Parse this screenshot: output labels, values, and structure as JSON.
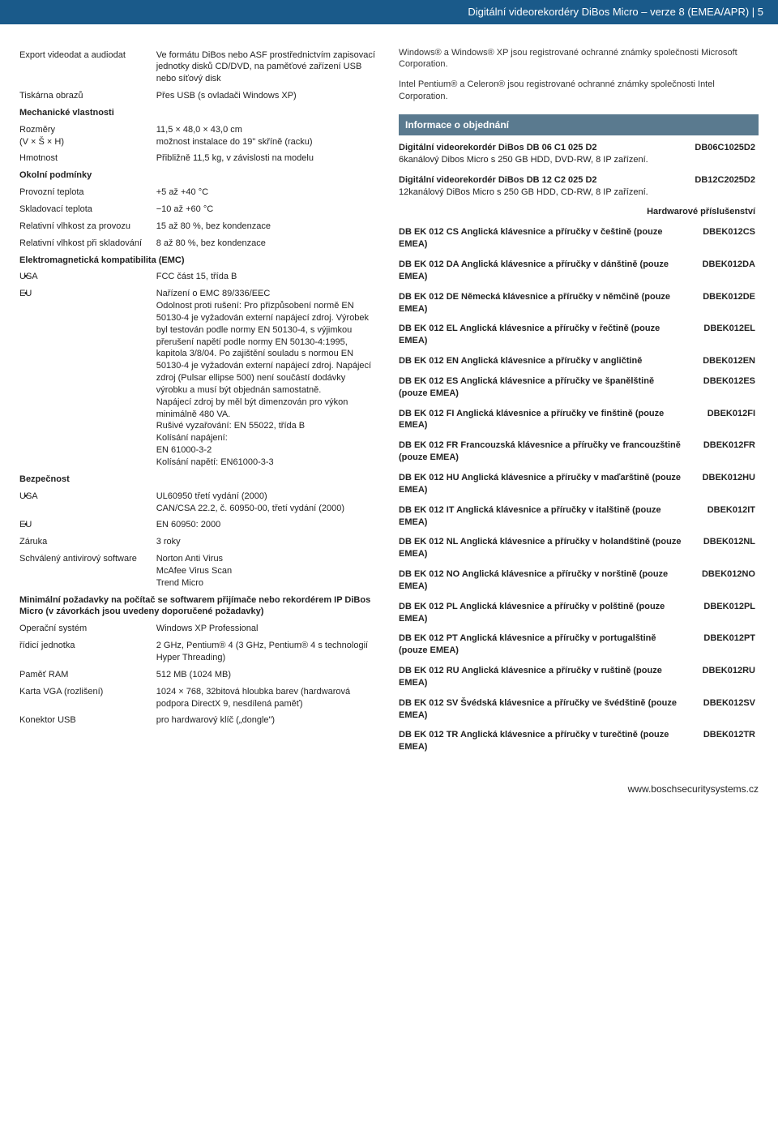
{
  "header": "Digitální videorekordéry DiBos Micro – verze 8 (EMEA/APR) | 5",
  "left": {
    "rows": [
      {
        "k": "Export videodat a audiodat",
        "v": "Ve formátu DiBos nebo ASF prostřednictvím zapisovací jednotky disků CD/DVD, na paměťové zařízení USB nebo síťový disk"
      },
      {
        "k": "Tiskárna obrazů",
        "v": "Přes USB (s ovladači Windows XP)"
      }
    ],
    "mech_head": "Mechanické vlastnosti",
    "mech": [
      {
        "k": "Rozměry\n(V × Š × H)",
        "v": "11,5 × 48,0 × 43,0 cm\nmožnost instalace do 19\" skříně (racku)"
      },
      {
        "k": "Hmotnost",
        "v": "Přibližně 11,5 kg, v závislosti na modelu"
      }
    ],
    "env_head": "Okolní podmínky",
    "env": [
      {
        "k": "Provozní teplota",
        "v": "+5 až +40 °C"
      },
      {
        "k": "Skladovací teplota",
        "v": "−10 až +60 °C"
      },
      {
        "k": "Relativní vlhkost za provozu",
        "v": "15 až 80 %, bez kondenzace"
      },
      {
        "k": "Relativní vlhkost při skladování",
        "v": "8 až 80 %, bez kondenzace"
      }
    ],
    "emc_head": "Elektromagnetická kompatibilita (EMC)",
    "emc": [
      {
        "k": "USA",
        "v": "FCC část 15, třída B",
        "bullet": true
      },
      {
        "k": "EU",
        "v": "Nařízení o EMC 89/336/EEC\nOdolnost proti rušení: Pro přizpůsobení normě EN 50130-4 je vyžadován externí napájecí zdroj. Výrobek byl testován podle normy EN 50130-4, s výjimkou přerušení napětí podle normy EN 50130-4:1995, kapitola 3/8/04. Po zajištění souladu s normou EN 50130-4 je vyžadován externí napájecí zdroj. Napájecí zdroj (Pulsar ellipse 500) není součástí dodávky výrobku a musí být objednán samostatně.\nNapájecí zdroj by měl být dimenzován pro výkon minimálně 480 VA.\nRušivé vyzařování: EN 55022, třída B\nKolísání napájení:\nEN 61000-3-2\nKolísání napětí: EN61000-3-3",
        "bullet": true
      }
    ],
    "safety_head": "Bezpečnost",
    "safety": [
      {
        "k": "USA",
        "v": "UL60950 třetí vydání (2000)\nCAN/CSA 22.2, č. 60950-00, třetí vydání (2000)",
        "bullet": true
      },
      {
        "k": "EU",
        "v": "EN 60950: 2000",
        "bullet": true
      }
    ],
    "misc": [
      {
        "k": "Záruka",
        "v": "3 roky"
      },
      {
        "k": "Schválený antivirový software",
        "v": "Norton Anti Virus\nMcAfee Virus Scan\nTrend Micro"
      }
    ],
    "req_head": "Minimální požadavky na počítač se softwarem přijímače nebo rekordérem IP DiBos Micro (v závorkách jsou uvedeny doporučené požadavky)",
    "req": [
      {
        "k": "Operační systém",
        "v": "Windows XP Professional"
      },
      {
        "k": "řídicí jednotka",
        "v": "2 GHz, Pentium® 4 (3 GHz, Pentium® 4 s technologií Hyper Threading)"
      },
      {
        "k": "Paměť RAM",
        "v": "512 MB (1024 MB)"
      },
      {
        "k": "Karta VGA (rozlišení)",
        "v": "1024 × 768, 32bitová hloubka barev (hardwarová podpora DirectX 9, nesdílená paměť)"
      },
      {
        "k": "Konektor USB",
        "v": "pro hardwarový klíč („dongle\")"
      }
    ]
  },
  "right": {
    "notes": [
      "Windows® a Windows® XP jsou registrované ochranné známky společnosti Microsoft Corporation.",
      "Intel Pentium® a Celeron® jsou registrované ochranné známky společnosti Intel Corporation."
    ],
    "order_head": "Informace o objednání",
    "orders": [
      {
        "t": "Digitální videorekordér DiBos DB 06 C1 025 D2",
        "d": "6kanálový Dibos Micro s 250 GB HDD, DVD-RW, 8 IP zařízení.",
        "c": "DB06C1025D2"
      },
      {
        "t": "Digitální videorekordér DiBos DB 12 C2 025 D2",
        "d": "12kanálový DiBos Micro s 250 GB HDD, CD-RW, 8 IP zařízení.",
        "c": "DB12C2025D2"
      }
    ],
    "hw_head": "Hardwarové příslušenství",
    "hw": [
      {
        "t": "DB EK 012 CS Anglická klávesnice a příručky v češtině (pouze EMEA)",
        "c": "DBEK012CS"
      },
      {
        "t": "DB EK 012 DA Anglická klávesnice a příručky v dánštině (pouze EMEA)",
        "c": "DBEK012DA"
      },
      {
        "t": "DB EK 012 DE Německá klávesnice a příručky v němčině (pouze EMEA)",
        "c": "DBEK012DE"
      },
      {
        "t": "DB EK 012 EL Anglická klávesnice a příručky v řečtině (pouze EMEA)",
        "c": "DBEK012EL"
      },
      {
        "t": "DB EK 012 EN Anglická klávesnice a příručky v angličtině",
        "c": "DBEK012EN"
      },
      {
        "t": "DB EK 012 ES Anglická klávesnice a příručky ve španělštině (pouze EMEA)",
        "c": "DBEK012ES"
      },
      {
        "t": "DB EK 012 FI Anglická klávesnice a příručky ve finštině (pouze EMEA)",
        "c": "DBEK012FI"
      },
      {
        "t": "DB EK 012 FR Francouzská klávesnice a příručky ve francouzštině (pouze EMEA)",
        "c": "DBEK012FR"
      },
      {
        "t": "DB EK 012 HU Anglická klávesnice a příručky v maďarštině (pouze EMEA)",
        "c": "DBEK012HU"
      },
      {
        "t": "DB EK 012 IT Anglická klávesnice a příručky v italštině (pouze EMEA)",
        "c": "DBEK012IT"
      },
      {
        "t": "DB EK 012 NL Anglická klávesnice a příručky v holandštině (pouze EMEA)",
        "c": "DBEK012NL"
      },
      {
        "t": "DB EK 012 NO Anglická klávesnice a příručky v norštině (pouze EMEA)",
        "c": "DBEK012NO"
      },
      {
        "t": "DB EK 012 PL Anglická klávesnice a příručky v polštině (pouze EMEA)",
        "c": "DBEK012PL"
      },
      {
        "t": "DB EK 012 PT Anglická klávesnice a příručky v portugalštině (pouze EMEA)",
        "c": "DBEK012PT"
      },
      {
        "t": "DB EK 012 RU Anglická klávesnice a příručky v ruštině (pouze EMEA)",
        "c": "DBEK012RU"
      },
      {
        "t": "DB EK 012 SV Švédská klávesnice a příručky ve švédštině (pouze EMEA)",
        "c": "DBEK012SV"
      },
      {
        "t": "DB EK 012 TR Anglická klávesnice a příručky v turečtině (pouze EMEA)",
        "c": "DBEK012TR"
      }
    ]
  },
  "footer": "www.boschsecuritysystems.cz"
}
